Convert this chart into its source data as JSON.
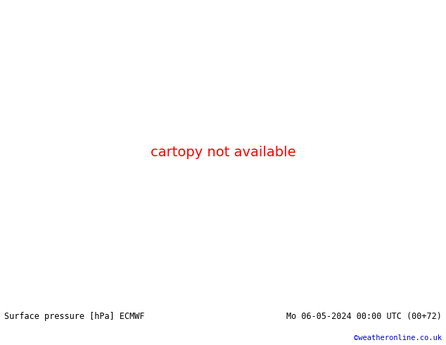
{
  "title_left": "Surface pressure [hPa] ECMWF",
  "title_right": "Mo 06-05-2024 00:00 UTC (00+72)",
  "credit": "©weatheronline.co.uk",
  "land_color": "#c8f08c",
  "sea_color": "#d4dde8",
  "border_color": "#888888",
  "fig_width": 6.34,
  "fig_height": 4.9,
  "dpi": 100,
  "bottom_bar_color": "#f0f0f0",
  "font_size_bottom": 8.5,
  "font_size_credit": 7.5,
  "map_extent": [
    25,
    110,
    5,
    60
  ],
  "isobar_lw": 1.0
}
